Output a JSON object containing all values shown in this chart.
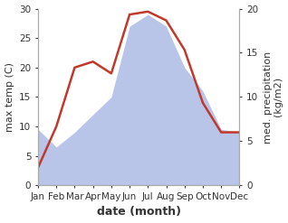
{
  "months": [
    "Jan",
    "Feb",
    "Mar",
    "Apr",
    "May",
    "Jun",
    "Jul",
    "Aug",
    "Sep",
    "Oct",
    "Nov",
    "Dec"
  ],
  "month_x": [
    1,
    2,
    3,
    4,
    5,
    6,
    7,
    8,
    9,
    10,
    11,
    12
  ],
  "temp": [
    3.0,
    10.0,
    20.0,
    21.0,
    19.0,
    29.0,
    29.5,
    28.0,
    23.0,
    14.0,
    9.0,
    9.0
  ],
  "precip_left_scale": [
    9.5,
    6.5,
    9.0,
    12.0,
    15.0,
    27.0,
    29.0,
    27.0,
    20.0,
    16.0,
    9.5,
    9.0
  ],
  "temp_color": "#c0392b",
  "precip_fill_color": "#b8c4e8",
  "background_color": "#ffffff",
  "temp_lw": 1.8,
  "ylabel_left": "max temp (C)",
  "ylabel_right": "med. precipitation\n(kg/m2)",
  "xlabel": "date (month)",
  "ylim_left": [
    0,
    30
  ],
  "ylim_right": [
    0,
    20
  ],
  "yticks_left": [
    0,
    5,
    10,
    15,
    20,
    25,
    30
  ],
  "yticks_right": [
    0,
    5,
    10,
    15,
    20
  ],
  "label_fontsize": 8,
  "tick_fontsize": 7.5,
  "xlabel_fontsize": 9
}
